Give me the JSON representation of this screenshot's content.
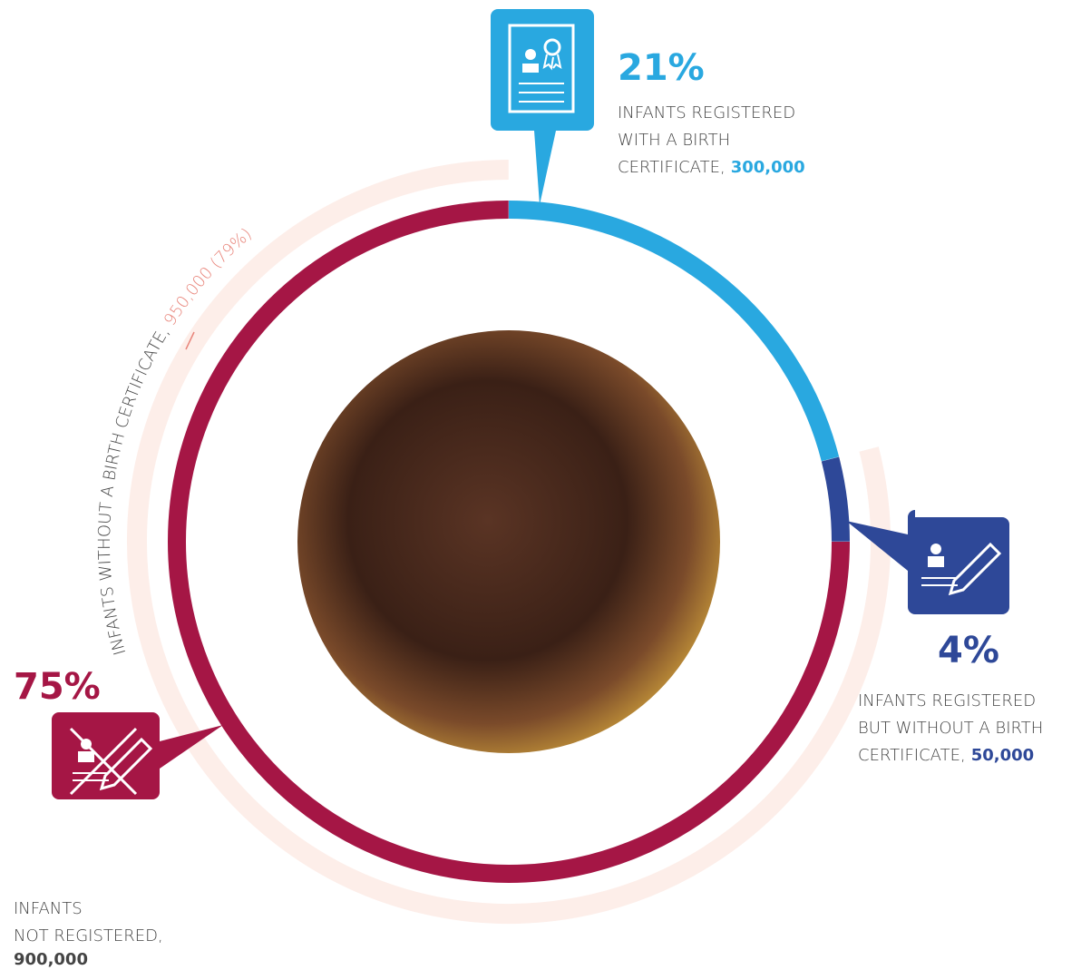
{
  "chart_data": {
    "type": "donut",
    "segments": [
      {
        "name_lines": [
          "INFANTS REGISTERED",
          "WITH A BIRTH",
          "CERTIFICATE,"
        ],
        "value": 21,
        "value_label": "21%",
        "count_label": "300,000",
        "color": "#29a8e0"
      },
      {
        "name_lines": [
          "INFANTS REGISTERED",
          "BUT WITHOUT A BIRTH",
          "CERTIFICATE,"
        ],
        "value": 4,
        "value_label": "4%",
        "count_label": "50,000",
        "color": "#2e4898"
      },
      {
        "name_lines": [
          "INFANTS",
          "NOT REGISTERED,"
        ],
        "value": 75,
        "value_label": "75%",
        "count_label": "900,000",
        "color": "#a51645"
      }
    ],
    "outer_arc": {
      "label": "INFANTS WITHOUT A BIRTH CERTIFICATE,",
      "value": 79,
      "value_label": "950,000 (79%)",
      "color": "#fdeee9",
      "label_color": "#e8847a"
    }
  }
}
